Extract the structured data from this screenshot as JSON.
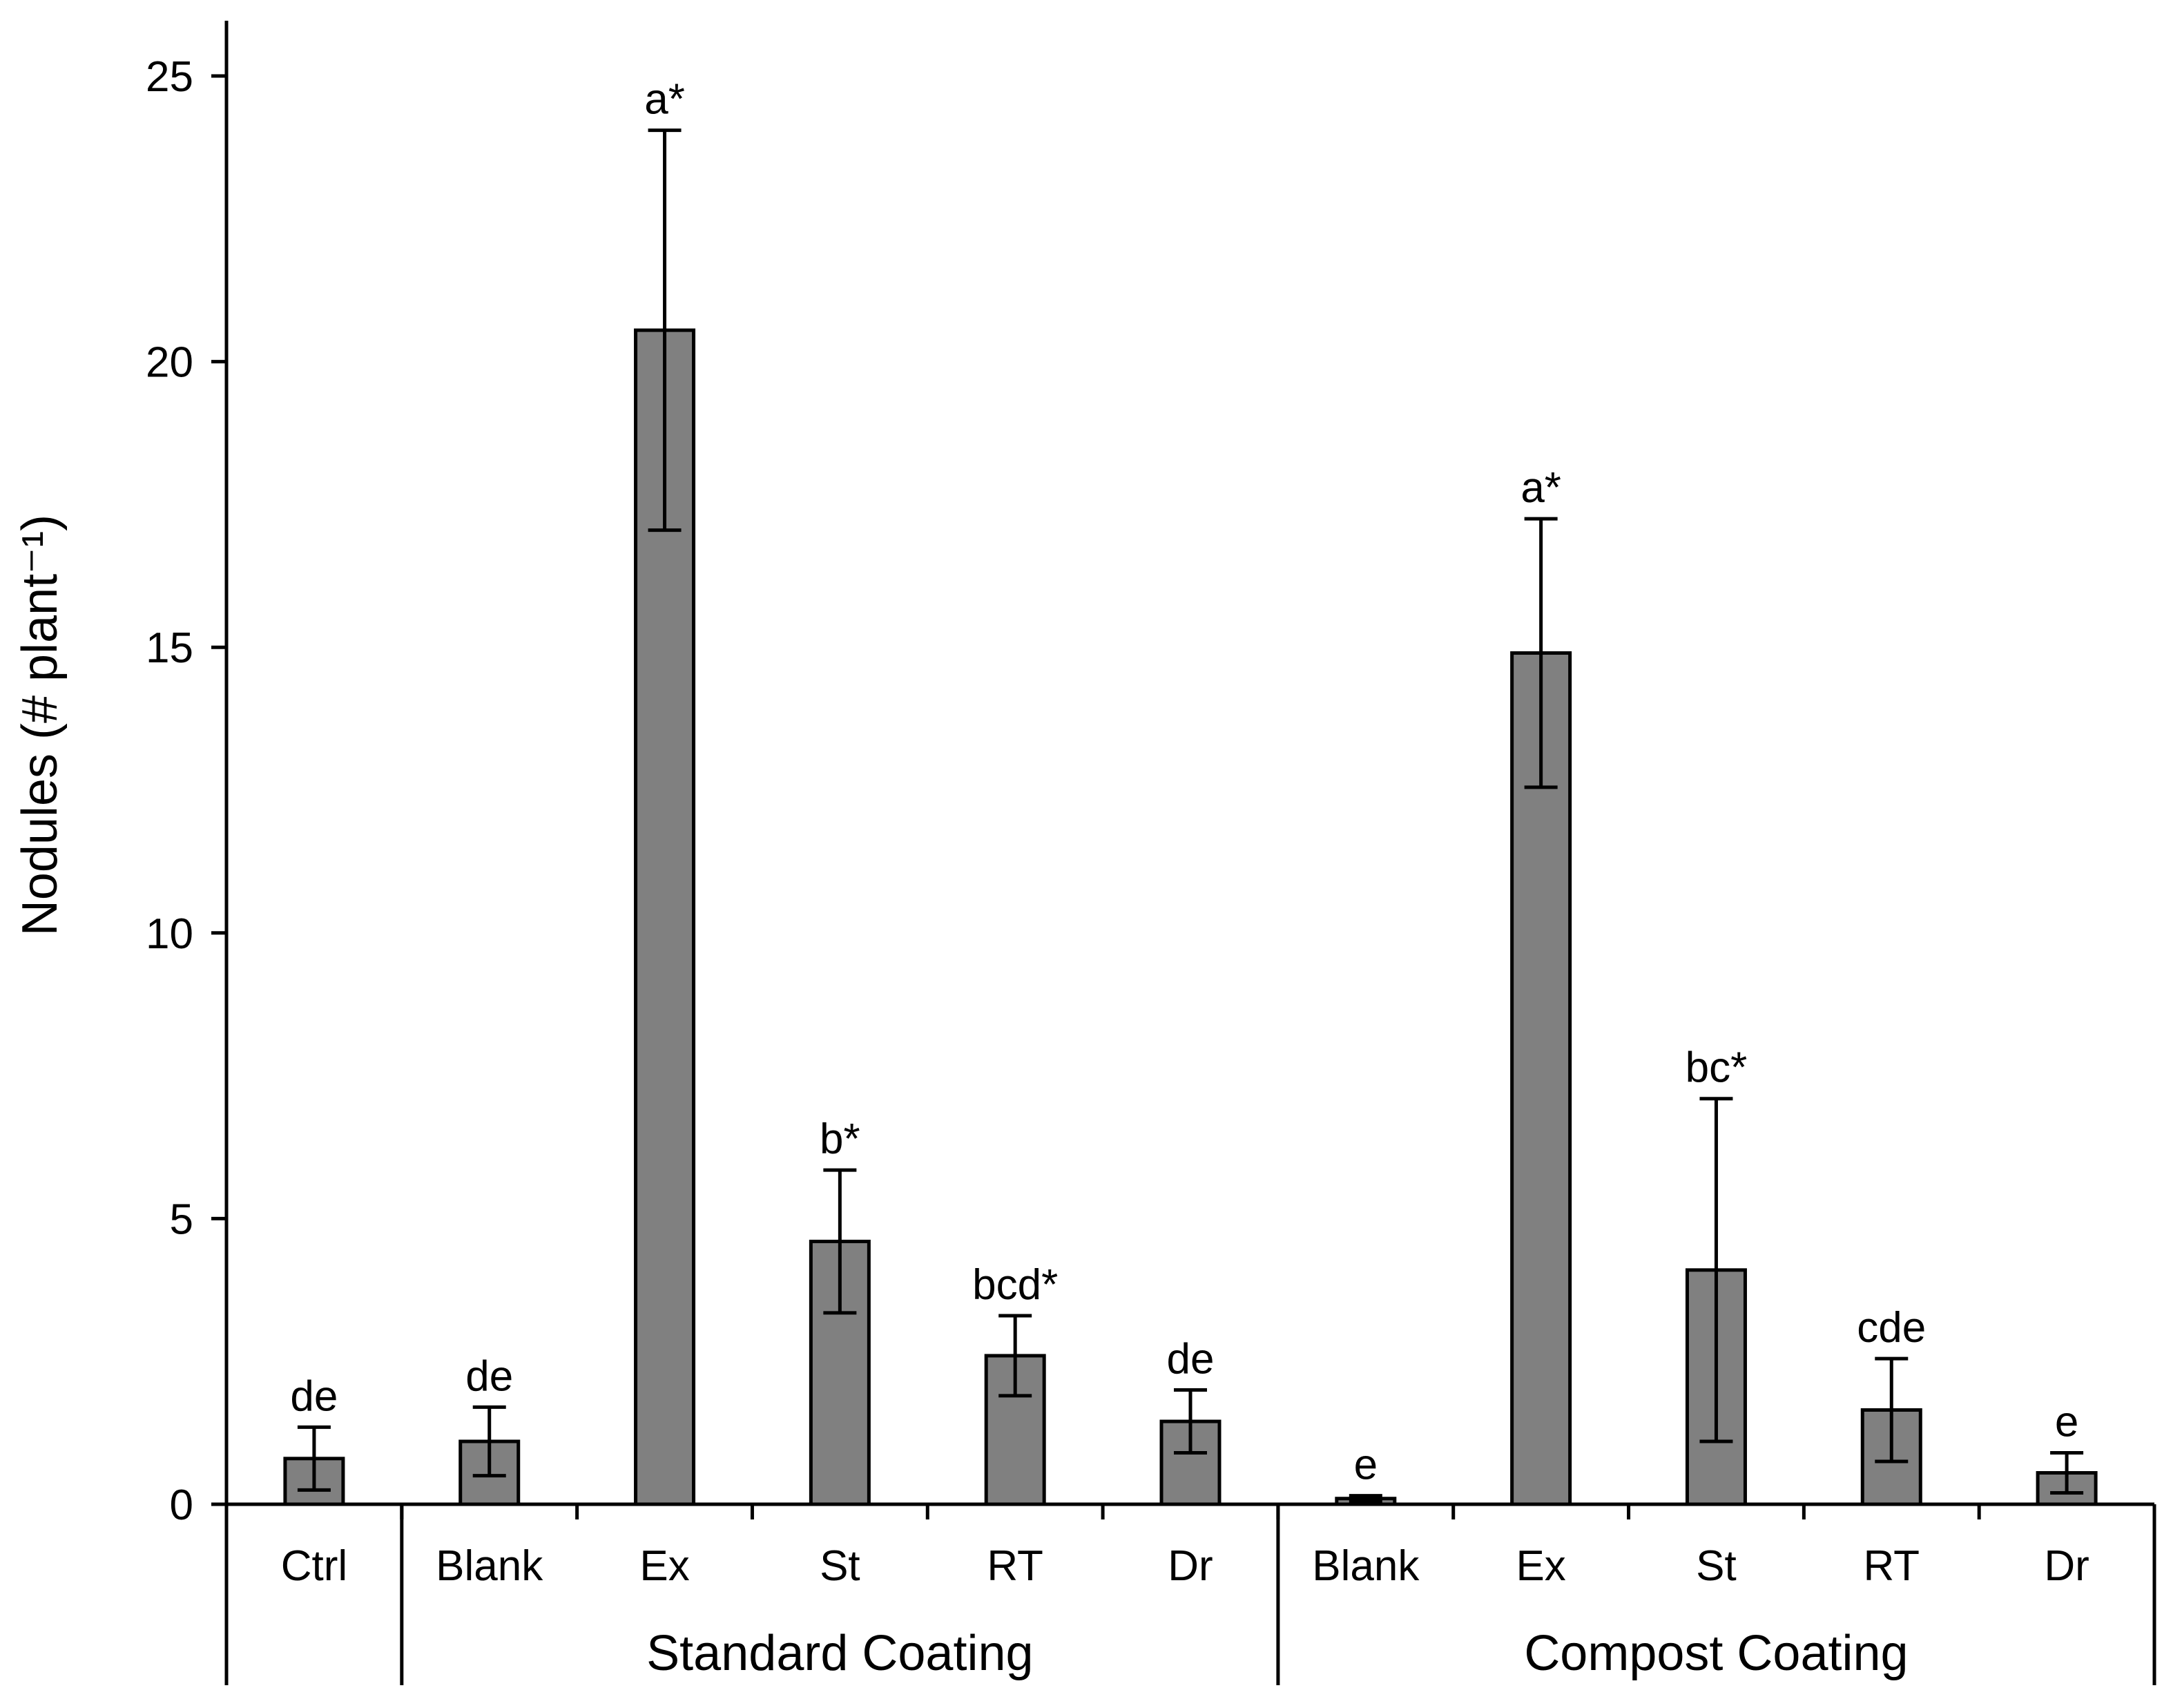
{
  "chart_data": {
    "type": "bar",
    "title": "",
    "ylabel": "Nodules (# plant⁻¹)",
    "xlabel": "",
    "ylim": [
      0,
      25
    ],
    "yticks": [
      0,
      5,
      10,
      15,
      20,
      25
    ],
    "grid": false,
    "legend": "none",
    "bar_color": "#808080",
    "categories": [
      "Ctrl",
      "Blank",
      "Ex",
      "St",
      "RT",
      "Dr",
      "Blank",
      "Ex",
      "St",
      "RT",
      "Dr"
    ],
    "values": [
      0.8,
      1.1,
      20.55,
      4.6,
      2.6,
      1.45,
      0.1,
      14.9,
      4.1,
      1.65,
      0.55
    ],
    "error": [
      0.55,
      0.6,
      3.5,
      1.25,
      0.7,
      0.55,
      0.05,
      2.35,
      3.0,
      0.9,
      0.35
    ],
    "significance": [
      "de",
      "de",
      "a*",
      "b*",
      "bcd*",
      "de",
      "e",
      "a*",
      "bc*",
      "cde",
      "e"
    ],
    "groups": [
      {
        "label": "",
        "start": 0,
        "end": 0
      },
      {
        "label": "Standard Coating",
        "start": 1,
        "end": 5
      },
      {
        "label": "Compost Coating",
        "start": 6,
        "end": 10
      }
    ]
  }
}
